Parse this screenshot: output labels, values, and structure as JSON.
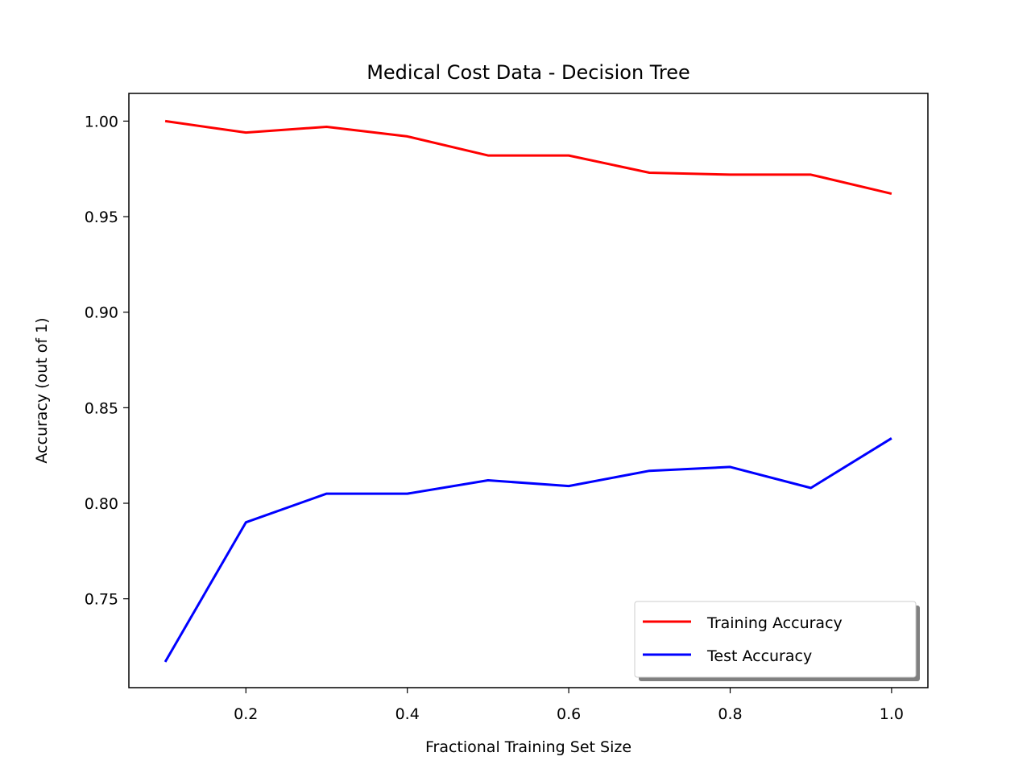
{
  "chart_data": {
    "type": "line",
    "title": "Medical Cost Data - Decision Tree",
    "xlabel": "Fractional Training Set Size",
    "ylabel": "Accuracy (out of 1)",
    "xlim": [
      0.055,
      1.045
    ],
    "ylim": [
      0.7035,
      1.0145
    ],
    "xticks": [
      0.2,
      0.4,
      0.6,
      0.8,
      1.0
    ],
    "xtick_labels": [
      "0.2",
      "0.4",
      "0.6",
      "0.8",
      "1.0"
    ],
    "yticks": [
      0.75,
      0.8,
      0.85,
      0.9,
      0.95,
      1.0
    ],
    "ytick_labels": [
      "0.75",
      "0.80",
      "0.85",
      "0.90",
      "0.95",
      "1.00"
    ],
    "x": [
      0.1,
      0.2,
      0.3,
      0.4,
      0.5,
      0.6,
      0.7,
      0.8,
      0.9,
      1.0
    ],
    "series": [
      {
        "name": "Training Accuracy",
        "color": "#ff0000",
        "values": [
          1.0,
          0.994,
          0.997,
          0.992,
          0.982,
          0.982,
          0.973,
          0.972,
          0.972,
          0.962
        ]
      },
      {
        "name": "Test Accuracy",
        "color": "#0000ff",
        "values": [
          0.717,
          0.79,
          0.805,
          0.805,
          0.812,
          0.809,
          0.817,
          0.819,
          0.808,
          0.834
        ]
      }
    ],
    "legend_position": "lower-right",
    "grid": false
  }
}
